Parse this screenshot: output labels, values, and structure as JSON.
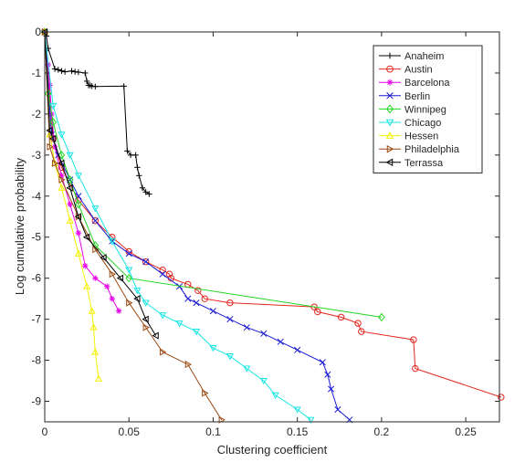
{
  "chart_data": {
    "type": "line",
    "xlabel": "Clustering coefficient",
    "ylabel": "Log cumulative probability",
    "xlim": [
      0,
      0.27
    ],
    "ylim": [
      -9.5,
      0
    ],
    "x_ticks": [
      0,
      0.05,
      0.1,
      0.15,
      0.2,
      0.25
    ],
    "x_tick_labels": [
      "0",
      "0.05",
      "0.1",
      "0.15",
      "0.2",
      "0.25"
    ],
    "y_ticks": [
      0,
      -1,
      -2,
      -3,
      -4,
      -5,
      -6,
      -7,
      -8,
      -9
    ],
    "y_tick_labels": [
      "0",
      "-1",
      "-2",
      "-3",
      "-4",
      "-5",
      "-6",
      "-7",
      "-8",
      "-9"
    ],
    "grid": false,
    "legend_position": "top-right",
    "series": [
      {
        "name": "Anaheim",
        "color": "#000000",
        "marker": "plus",
        "x": [
          0,
          0.001,
          0.002,
          0.006,
          0.008,
          0.01,
          0.012,
          0.016,
          0.018,
          0.02,
          0.024,
          0.025,
          0.026,
          0.027,
          0.028,
          0.03,
          0.047,
          0.049,
          0.051,
          0.054,
          0.055,
          0.056,
          0.058,
          0.06,
          0.062
        ],
        "y": [
          0,
          -0.1,
          -0.4,
          -0.9,
          -0.92,
          -0.95,
          -0.97,
          -0.95,
          -0.97,
          -0.98,
          -1.0,
          -1.2,
          -1.3,
          -1.3,
          -1.32,
          -1.33,
          -1.32,
          -2.9,
          -3.0,
          -3.0,
          -3.3,
          -3.5,
          -3.8,
          -3.9,
          -3.95
        ]
      },
      {
        "name": "Austin",
        "color": "#e3271f",
        "marker": "circle",
        "x": [
          0,
          0.005,
          0.01,
          0.02,
          0.03,
          0.04,
          0.05,
          0.06,
          0.07,
          0.074,
          0.075,
          0.085,
          0.091,
          0.095,
          0.11,
          0.16,
          0.162,
          0.176,
          0.186,
          0.188,
          0.219,
          0.22,
          0.271
        ],
        "y": [
          0,
          -2.6,
          -3.3,
          -4.1,
          -4.6,
          -5.0,
          -5.35,
          -5.6,
          -5.8,
          -5.9,
          -6.0,
          -6.15,
          -6.3,
          -6.5,
          -6.6,
          -6.7,
          -6.82,
          -6.95,
          -7.1,
          -7.3,
          -7.5,
          -8.2,
          -8.9
        ]
      },
      {
        "name": "Barcelona",
        "color": "#e800e8",
        "marker": "asterisk",
        "x": [
          0,
          0.002,
          0.003,
          0.004,
          0.006,
          0.01,
          0.015,
          0.02,
          0.024,
          0.03,
          0.037,
          0.04,
          0.044
        ],
        "y": [
          0,
          -0.8,
          -1.3,
          -2.0,
          -2.8,
          -3.5,
          -4.2,
          -4.9,
          -5.7,
          -6.0,
          -6.2,
          -6.5,
          -6.8
        ]
      },
      {
        "name": "Berlin",
        "color": "#1a1ad6",
        "marker": "x",
        "x": [
          0,
          0.004,
          0.008,
          0.015,
          0.02,
          0.03,
          0.04,
          0.05,
          0.06,
          0.07,
          0.08,
          0.085,
          0.09,
          0.1,
          0.11,
          0.12,
          0.13,
          0.14,
          0.15,
          0.165,
          0.168,
          0.17,
          0.174,
          0.181
        ],
        "y": [
          0,
          -2.5,
          -3.0,
          -3.6,
          -4.0,
          -4.6,
          -5.1,
          -5.4,
          -5.6,
          -5.9,
          -6.2,
          -6.5,
          -6.6,
          -6.8,
          -7.0,
          -7.2,
          -7.35,
          -7.55,
          -7.75,
          -8.05,
          -8.35,
          -8.7,
          -9.2,
          -9.45
        ]
      },
      {
        "name": "Winnipeg",
        "color": "#22d622",
        "marker": "diamond",
        "x": [
          0,
          0.002,
          0.005,
          0.01,
          0.015,
          0.02,
          0.03,
          0.05,
          0.2
        ],
        "y": [
          0,
          -1.5,
          -2.2,
          -3.0,
          -3.6,
          -4.2,
          -5.2,
          -6.0,
          -6.95
        ]
      },
      {
        "name": "Chicago",
        "color": "#19e4e4",
        "marker": "triangle-down",
        "x": [
          0,
          0.005,
          0.01,
          0.015,
          0.02,
          0.03,
          0.04,
          0.05,
          0.055,
          0.06,
          0.07,
          0.08,
          0.09,
          0.1,
          0.11,
          0.12,
          0.13,
          0.137,
          0.15,
          0.158
        ],
        "y": [
          0,
          -1.8,
          -2.5,
          -3.0,
          -3.5,
          -4.3,
          -5.1,
          -5.8,
          -6.3,
          -6.6,
          -6.9,
          -7.1,
          -7.3,
          -7.7,
          -7.9,
          -8.2,
          -8.5,
          -8.85,
          -9.2,
          -9.45
        ]
      },
      {
        "name": "Hessen",
        "color": "#f2f200",
        "marker": "triangle-up",
        "x": [
          0,
          0.003,
          0.006,
          0.01,
          0.015,
          0.02,
          0.025,
          0.028,
          0.029,
          0.03,
          0.032
        ],
        "y": [
          0,
          -2.5,
          -3.2,
          -3.8,
          -4.6,
          -5.4,
          -6.2,
          -6.8,
          -7.2,
          -7.8,
          -8.45
        ]
      },
      {
        "name": "Philadelphia",
        "color": "#9c4a12",
        "marker": "triangle-right",
        "x": [
          0,
          0.003,
          0.006,
          0.01,
          0.02,
          0.03,
          0.04,
          0.05,
          0.06,
          0.07,
          0.085,
          0.095,
          0.105
        ],
        "y": [
          0,
          -2.8,
          -3.2,
          -3.6,
          -4.5,
          -5.3,
          -5.9,
          -6.6,
          -7.2,
          -7.8,
          -8.1,
          -8.8,
          -9.45
        ]
      },
      {
        "name": "Terrassa",
        "color": "#000000",
        "marker": "triangle-left",
        "x": [
          0,
          0.003,
          0.005,
          0.01,
          0.015,
          0.02,
          0.025,
          0.035,
          0.045,
          0.055,
          0.06,
          0.066
        ],
        "y": [
          0,
          -2.4,
          -2.6,
          -3.2,
          -3.8,
          -4.5,
          -5.0,
          -5.5,
          -6.0,
          -6.5,
          -7.0,
          -7.4
        ]
      }
    ]
  }
}
